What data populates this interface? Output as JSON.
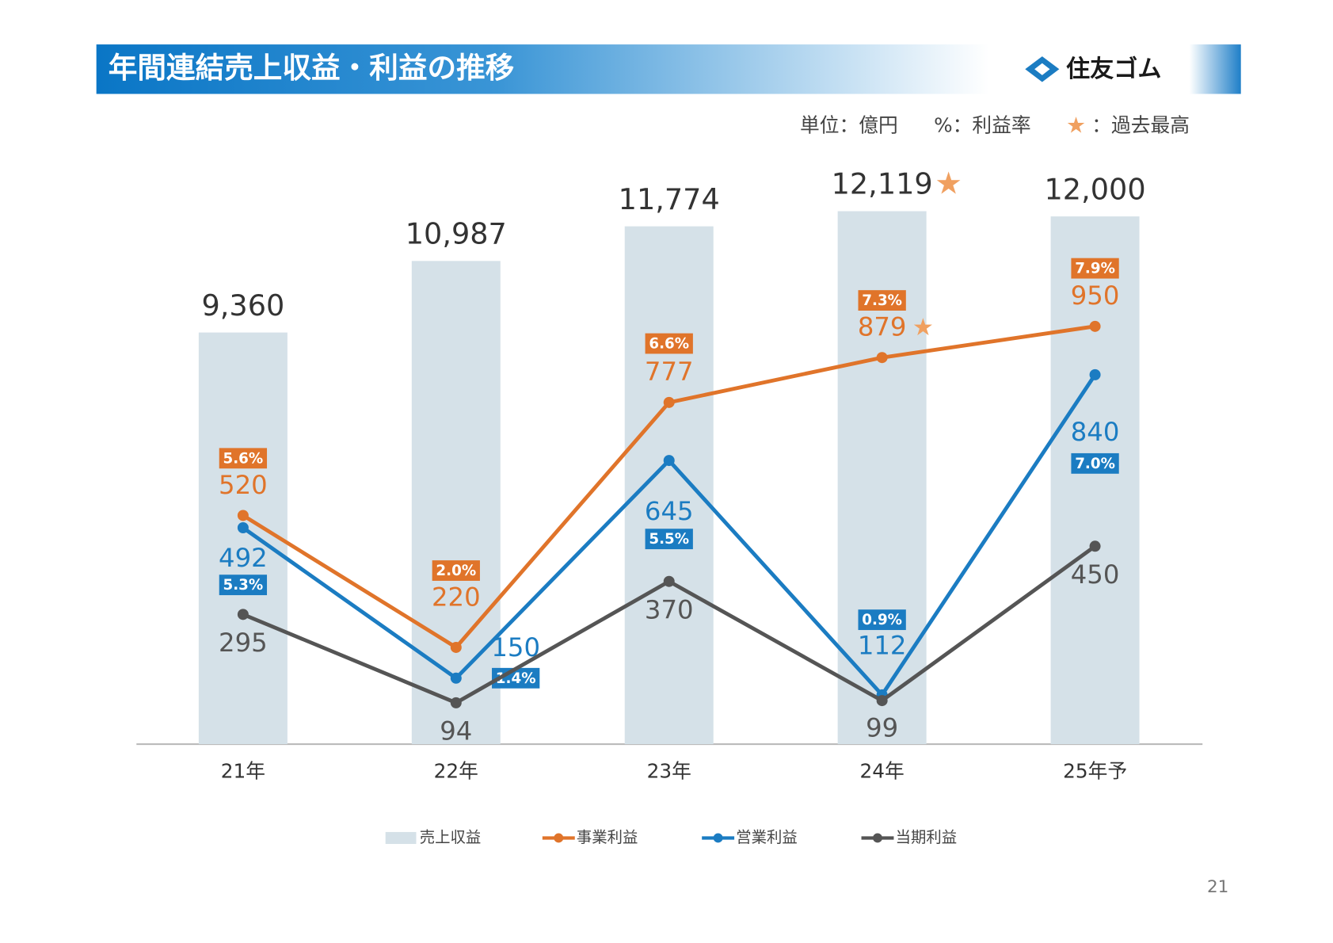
{
  "header": {
    "title": "年間連結売上収益・利益の推移",
    "logo": "住友ゴム"
  },
  "chart_data": {
    "type": "combo",
    "unit_note": "単位：億円",
    "rate_note": "%：利益率",
    "record_mark": "★",
    "record_note": "：過去最高",
    "categories": [
      "21年",
      "22年",
      "23年",
      "24年",
      "25年予"
    ],
    "ylim": [
      0,
      1300
    ],
    "y2lim": [
      0,
      13000
    ],
    "series": [
      {
        "name": "売上収益",
        "type": "bar",
        "axis": "y2",
        "color": "#d5e1e8",
        "values": [
          9360,
          10987,
          11774,
          12119,
          12000
        ],
        "value_labels": [
          "9,360",
          "10,987",
          "11,774",
          "12,119",
          "12,000"
        ],
        "record": [
          false,
          false,
          false,
          true,
          false
        ]
      },
      {
        "name": "事業利益",
        "type": "line",
        "color": "#e0742a",
        "values": [
          520,
          220,
          777,
          879,
          950
        ],
        "rate_labels": [
          "5.6%",
          "2.0%",
          "6.6%",
          "7.3%",
          "7.9%"
        ],
        "record": [
          false,
          false,
          false,
          true,
          false
        ]
      },
      {
        "name": "営業利益",
        "type": "line",
        "color": "#1b7cc2",
        "values": [
          492,
          150,
          645,
          112,
          840
        ],
        "rate_labels": [
          "5.3%",
          "1.4%",
          "5.5%",
          "0.9%",
          "7.0%"
        ]
      },
      {
        "name": "当期利益",
        "type": "line",
        "color": "#555555",
        "values": [
          295,
          94,
          370,
          99,
          450
        ]
      }
    ]
  },
  "page_number": "21"
}
